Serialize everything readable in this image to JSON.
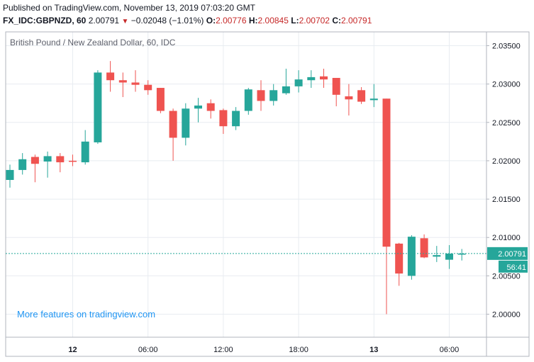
{
  "header": {
    "published": "Published on TradingView.com, November 13, 2019 07:03:20 GMT",
    "symbol": "FX_IDC:GBPNZD, 60",
    "last": "2.00791",
    "arrow": "▼",
    "change": "−0.02048 (−1.01%)",
    "o_label": "O:",
    "o_value": "2.00776",
    "h_label": "H:",
    "h_value": "2.00845",
    "l_label": "L:",
    "l_value": "2.00702",
    "c_label": "C:",
    "c_value": "2.00791"
  },
  "watermark": "More features on tradingview.com",
  "colors": {
    "up": "#26a69a",
    "down": "#ef5350",
    "grid": "#e8ecf1",
    "axis": "#787b86"
  },
  "chart_data": {
    "type": "candlestick",
    "title": "British Pound / New Zealand Dollar, 60, IDC",
    "y_ticks": [
      "2.03500",
      "2.03000",
      "2.02500",
      "2.02000",
      "2.01500",
      "2.01000",
      "2.00500",
      "2.00000"
    ],
    "ylim": [
      1.997,
      2.0368
    ],
    "x_ticks": [
      {
        "label": "12",
        "bold": true,
        "index": 5
      },
      {
        "label": "06:00",
        "bold": false,
        "index": 11
      },
      {
        "label": "12:00",
        "bold": false,
        "index": 17
      },
      {
        "label": "18:00",
        "bold": false,
        "index": 23
      },
      {
        "label": "13",
        "bold": true,
        "index": 29
      },
      {
        "label": "06:00",
        "bold": false,
        "index": 35
      }
    ],
    "last_price_label": "2.00791",
    "countdown_label": "56:41",
    "last_price": 2.00791,
    "grid": true,
    "candles": [
      {
        "o": 2.0175,
        "h": 2.0195,
        "l": 2.0165,
        "c": 2.0188
      },
      {
        "o": 2.0188,
        "h": 2.021,
        "l": 2.0182,
        "c": 2.0202
      },
      {
        "o": 2.0205,
        "h": 2.0208,
        "l": 2.0172,
        "c": 2.0196
      },
      {
        "o": 2.0199,
        "h": 2.0212,
        "l": 2.0178,
        "c": 2.0206
      },
      {
        "o": 2.0206,
        "h": 2.021,
        "l": 2.0185,
        "c": 2.0198
      },
      {
        "o": 2.02,
        "h": 2.0208,
        "l": 2.0193,
        "c": 2.0199
      },
      {
        "o": 2.0198,
        "h": 2.024,
        "l": 2.0195,
        "c": 2.0225
      },
      {
        "o": 2.0224,
        "h": 2.0318,
        "l": 2.0222,
        "c": 2.0315
      },
      {
        "o": 2.0315,
        "h": 2.033,
        "l": 2.029,
        "c": 2.0305
      },
      {
        "o": 2.0305,
        "h": 2.0315,
        "l": 2.0283,
        "c": 2.0302
      },
      {
        "o": 2.0302,
        "h": 2.0318,
        "l": 2.029,
        "c": 2.0299
      },
      {
        "o": 2.0299,
        "h": 2.0305,
        "l": 2.0286,
        "c": 2.0292
      },
      {
        "o": 2.0295,
        "h": 2.0295,
        "l": 2.0262,
        "c": 2.0265
      },
      {
        "o": 2.0265,
        "h": 2.0268,
        "l": 2.02,
        "c": 2.023
      },
      {
        "o": 2.023,
        "h": 2.0275,
        "l": 2.022,
        "c": 2.0268
      },
      {
        "o": 2.0268,
        "h": 2.0282,
        "l": 2.025,
        "c": 2.0272
      },
      {
        "o": 2.0275,
        "h": 2.028,
        "l": 2.0255,
        "c": 2.0265
      },
      {
        "o": 2.0266,
        "h": 2.0268,
        "l": 2.0235,
        "c": 2.0245
      },
      {
        "o": 2.0245,
        "h": 2.027,
        "l": 2.024,
        "c": 2.0265
      },
      {
        "o": 2.0265,
        "h": 2.0295,
        "l": 2.026,
        "c": 2.0293
      },
      {
        "o": 2.0292,
        "h": 2.0305,
        "l": 2.0265,
        "c": 2.0278
      },
      {
        "o": 2.0278,
        "h": 2.03,
        "l": 2.0272,
        "c": 2.0292
      },
      {
        "o": 2.0288,
        "h": 2.032,
        "l": 2.0286,
        "c": 2.0297
      },
      {
        "o": 2.0297,
        "h": 2.0318,
        "l": 2.0289,
        "c": 2.0306
      },
      {
        "o": 2.0305,
        "h": 2.0318,
        "l": 2.0295,
        "c": 2.0309
      },
      {
        "o": 2.031,
        "h": 2.032,
        "l": 2.0295,
        "c": 2.0306
      },
      {
        "o": 2.0308,
        "h": 2.0308,
        "l": 2.0271,
        "c": 2.0286
      },
      {
        "o": 2.0284,
        "h": 2.03,
        "l": 2.0259,
        "c": 2.028
      },
      {
        "o": 2.0292,
        "h": 2.0296,
        "l": 2.0274,
        "c": 2.0277
      },
      {
        "o": 2.0279,
        "h": 2.03,
        "l": 2.027,
        "c": 2.0281
      },
      {
        "o": 2.0281,
        "h": 2.0281,
        "l": 2.0,
        "c": 2.0088
      },
      {
        "o": 2.0092,
        "h": 2.0093,
        "l": 2.0037,
        "c": 2.0053
      },
      {
        "o": 2.005,
        "h": 2.0103,
        "l": 2.0045,
        "c": 2.0101
      },
      {
        "o": 2.0099,
        "h": 2.0104,
        "l": 2.0073,
        "c": 2.0074
      },
      {
        "o": 2.0075,
        "h": 2.0089,
        "l": 2.0068,
        "c": 2.0077
      },
      {
        "o": 2.0071,
        "h": 2.009,
        "l": 2.0059,
        "c": 2.0079
      },
      {
        "o": 2.0078,
        "h": 2.0085,
        "l": 2.007,
        "c": 2.0079
      }
    ]
  }
}
